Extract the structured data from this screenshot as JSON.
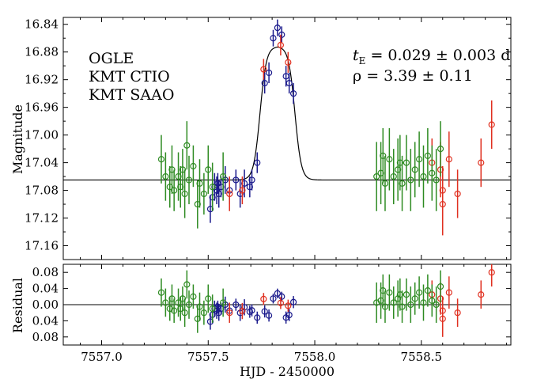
{
  "chart_data": {
    "type": "scatter",
    "xlabel": "HJD - 2450000",
    "x_ticks": [
      "7557.0",
      "7557.5",
      "7558.0",
      "7558.5"
    ],
    "xlim": [
      7556.82,
      7558.92
    ],
    "colors": {
      "OGLE": "#1a1a8c",
      "KMT CTIO": "#e03020",
      "KMT SAAO": "#2e8b22",
      "model": "#000000"
    },
    "panels": [
      {
        "name": "main",
        "ylabel": "Magnitude",
        "ylim": [
          17.18,
          16.83
        ],
        "inverted": true,
        "y_ticks": [
          "16.84",
          "16.88",
          "16.92",
          "16.96",
          "17.00",
          "17.04",
          "17.08",
          "17.12",
          "17.16"
        ]
      },
      {
        "name": "residual",
        "ylabel": "Residual",
        "ylim": [
          0.1,
          -0.1
        ],
        "inverted": true,
        "y_ticks": [
          "0.08",
          "0.04",
          "0.00",
          "0.04",
          "0.08"
        ],
        "y_tick_values": [
          -0.08,
          -0.04,
          0.0,
          0.04,
          0.08
        ]
      }
    ],
    "annotations": {
      "tE": "t_E = 0.029 ± 0.003 d",
      "rho": "ρ = 3.39 ± 0.11"
    },
    "model": {
      "baseline": 17.065,
      "peak": 16.872,
      "t0": 7557.825,
      "half_width": 0.082,
      "edge_width": 0.015
    },
    "series": [
      {
        "name": "OGLE",
        "points": [
          [
            7557.51,
            17.107,
            0.02
          ],
          [
            7557.52,
            17.09,
            0.02
          ],
          [
            7557.53,
            17.075,
            0.02
          ],
          [
            7557.54,
            17.08,
            0.02
          ],
          [
            7557.545,
            17.07,
            0.015
          ],
          [
            7557.55,
            17.085,
            0.02
          ],
          [
            7557.56,
            17.075,
            0.015
          ],
          [
            7557.58,
            17.065,
            0.02
          ],
          [
            7557.6,
            17.08,
            0.02
          ],
          [
            7557.63,
            17.065,
            0.015
          ],
          [
            7557.65,
            17.085,
            0.02
          ],
          [
            7557.67,
            17.07,
            0.02
          ],
          [
            7557.695,
            17.075,
            0.015
          ],
          [
            7557.705,
            17.065,
            0.015
          ],
          [
            7557.73,
            17.04,
            0.015
          ],
          [
            7557.765,
            16.925,
            0.015
          ],
          [
            7557.785,
            16.91,
            0.015
          ],
          [
            7557.805,
            16.86,
            0.012
          ],
          [
            7557.825,
            16.845,
            0.012
          ],
          [
            7557.845,
            16.855,
            0.012
          ],
          [
            7557.865,
            16.915,
            0.015
          ],
          [
            7557.88,
            16.925,
            0.015
          ],
          [
            7557.9,
            16.94,
            0.015
          ]
        ]
      },
      {
        "name": "KMT CTIO",
        "points": [
          [
            7557.6,
            17.085,
            0.025
          ],
          [
            7557.66,
            17.08,
            0.02
          ],
          [
            7557.76,
            16.905,
            0.015
          ],
          [
            7557.84,
            16.87,
            0.015
          ],
          [
            7557.875,
            16.895,
            0.015
          ],
          [
            7558.55,
            17.04,
            0.035
          ],
          [
            7558.59,
            17.05,
            0.04
          ],
          [
            7558.6,
            17.08,
            0.035
          ],
          [
            7558.6,
            17.1,
            0.045
          ],
          [
            7558.63,
            17.035,
            0.04
          ],
          [
            7558.67,
            17.085,
            0.035
          ],
          [
            7558.78,
            17.04,
            0.035
          ],
          [
            7558.83,
            16.985,
            0.035
          ]
        ]
      },
      {
        "name": "KMT SAAO",
        "points": [
          [
            7557.28,
            17.035,
            0.035
          ],
          [
            7557.3,
            17.06,
            0.035
          ],
          [
            7557.32,
            17.075,
            0.03
          ],
          [
            7557.33,
            17.05,
            0.035
          ],
          [
            7557.34,
            17.08,
            0.03
          ],
          [
            7557.36,
            17.06,
            0.035
          ],
          [
            7557.37,
            17.075,
            0.03
          ],
          [
            7557.38,
            17.05,
            0.03
          ],
          [
            7557.39,
            17.085,
            0.035
          ],
          [
            7557.4,
            17.015,
            0.035
          ],
          [
            7557.41,
            17.065,
            0.035
          ],
          [
            7557.43,
            17.045,
            0.03
          ],
          [
            7557.45,
            17.1,
            0.035
          ],
          [
            7557.46,
            17.07,
            0.035
          ],
          [
            7557.48,
            17.085,
            0.03
          ],
          [
            7557.5,
            17.05,
            0.035
          ],
          [
            7557.52,
            17.075,
            0.035
          ],
          [
            7557.57,
            17.06,
            0.035
          ],
          [
            7558.29,
            17.06,
            0.05
          ],
          [
            7558.31,
            17.055,
            0.045
          ],
          [
            7558.32,
            17.03,
            0.04
          ],
          [
            7558.33,
            17.07,
            0.04
          ],
          [
            7558.35,
            17.035,
            0.045
          ],
          [
            7558.37,
            17.06,
            0.04
          ],
          [
            7558.39,
            17.05,
            0.045
          ],
          [
            7558.4,
            17.04,
            0.04
          ],
          [
            7558.41,
            17.07,
            0.04
          ],
          [
            7558.43,
            17.04,
            0.04
          ],
          [
            7558.45,
            17.065,
            0.045
          ],
          [
            7558.47,
            17.05,
            0.04
          ],
          [
            7558.49,
            17.035,
            0.04
          ],
          [
            7558.51,
            17.06,
            0.045
          ],
          [
            7558.53,
            17.03,
            0.04
          ],
          [
            7558.55,
            17.055,
            0.04
          ],
          [
            7558.57,
            17.065,
            0.045
          ],
          [
            7558.59,
            17.02,
            0.04
          ]
        ]
      }
    ]
  }
}
